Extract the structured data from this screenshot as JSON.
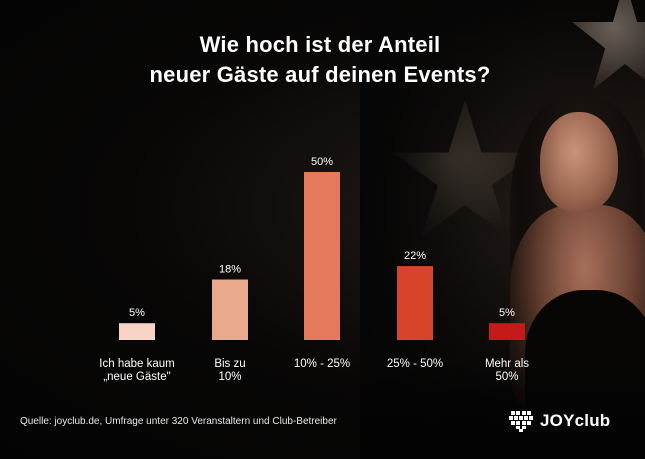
{
  "title_lines": [
    "Wie hoch ist der Anteil",
    "neuer Gäste auf deinen Events?"
  ],
  "chart_data": {
    "type": "bar",
    "title": "Wie hoch ist der Anteil neuer Gäste auf deinen Events?",
    "categories": [
      [
        "Ich habe kaum",
        "„neue Gäste\""
      ],
      [
        "Bis zu",
        "10%"
      ],
      [
        "10% - 25%"
      ],
      [
        "25% - 50%"
      ],
      [
        "Mehr als",
        "50%"
      ]
    ],
    "values": [
      5,
      18,
      50,
      22,
      5
    ],
    "value_labels": [
      "5%",
      "18%",
      "50%",
      "22%",
      "5%"
    ],
    "bar_colors": [
      "#f6d3c4",
      "#e8a98c",
      "#e47a5c",
      "#d6452a",
      "#c41a1a"
    ],
    "ylim": [
      0,
      50
    ],
    "grid": false,
    "legend": "none"
  },
  "source": "Quelle: joyclub.de, Umfrage unter 320 Veranstaltern und Club-Betreiber",
  "logo": {
    "text": "JOYclub",
    "icon": "heart-logo-icon"
  },
  "colors": {
    "background": "#050505",
    "text": "#ffffff"
  }
}
